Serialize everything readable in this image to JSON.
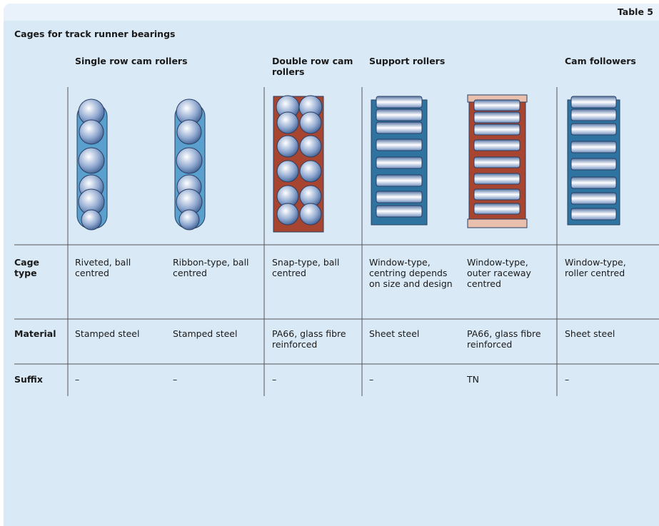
{
  "header": {
    "table_label": "Table 5",
    "title": "Cages for track runner bearings"
  },
  "table": {
    "groups": [
      "Single row cam rollers",
      "Double row cam rollers",
      "Support rollers",
      "Cam followers"
    ],
    "row_labels": [
      "Cage type",
      "Material",
      "Suffix"
    ],
    "rows": [
      [
        "Riveted, ball centred",
        "Ribbon-type, ball centred",
        "Snap-type, ball centred",
        "Window-type, centring depends on size and design",
        "Window-type, outer raceway centred",
        "Window-type, roller centred"
      ],
      [
        "Stamped steel",
        "Stamped steel",
        "PA66, glass fibre reinforced",
        "Sheet steel",
        "PA66, glass fibre reinforced",
        "Sheet steel"
      ],
      [
        "–",
        "–",
        "–",
        "–",
        "TN",
        "–"
      ]
    ]
  }
}
